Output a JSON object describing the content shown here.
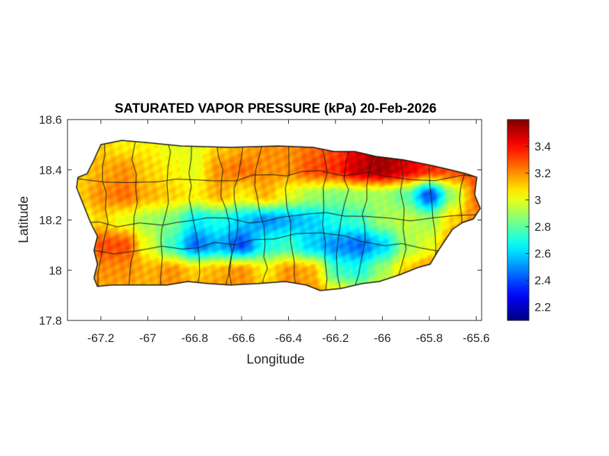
{
  "chart_data": {
    "type": "heatmap",
    "title": "SATURATED VAPOR PRESSURE (kPa) 20-Feb-2026",
    "xlabel": "Longitude",
    "ylabel": "Latitude",
    "xlim": [
      -67.342,
      -65.577
    ],
    "ylim": [
      17.8,
      18.6
    ],
    "xticks": [
      -67.2,
      -67,
      -66.8,
      -66.6,
      -66.4,
      -66.2,
      -66,
      -65.8,
      -65.6
    ],
    "xtick_labels": [
      "-67.2",
      "-67",
      "-66.8",
      "-66.6",
      "-66.4",
      "-66.2",
      "-66",
      "-65.8",
      "-65.6"
    ],
    "yticks": [
      17.8,
      18,
      18.2,
      18.4,
      18.6
    ],
    "ytick_labels": [
      "17.8",
      "18",
      "18.2",
      "18.4",
      "18.6"
    ],
    "colormap": "jet",
    "colorbar": {
      "range": [
        2.1,
        3.6
      ],
      "ticks": [
        2.2,
        2.4,
        2.6,
        2.8,
        3,
        3.2,
        3.4
      ],
      "tick_labels": [
        "2.2",
        "2.4",
        "2.6",
        "2.8",
        "3",
        "3.2",
        "3.4"
      ],
      "location": "right"
    },
    "grid": false,
    "grid_lon": [
      -67.3,
      -67.2,
      -67.1,
      -67.0,
      -66.9,
      -66.8,
      -66.7,
      -66.6,
      -66.5,
      -66.4,
      -66.3,
      -66.2,
      -66.1,
      -66.0,
      -65.9,
      -65.8,
      -65.7,
      -65.6
    ],
    "grid_lat": [
      18.5,
      18.4,
      18.3,
      18.2,
      18.1,
      18.0,
      17.9
    ],
    "values": [
      [
        3.1,
        3.1,
        3.05,
        3.05,
        3.0,
        3.0,
        3.1,
        3.15,
        3.2,
        3.2,
        3.25,
        3.3,
        3.45,
        3.55,
        3.5,
        3.4,
        3.35,
        3.3
      ],
      [
        3.1,
        3.15,
        3.2,
        3.1,
        3.05,
        3.0,
        3.2,
        3.25,
        3.2,
        3.2,
        3.3,
        3.35,
        3.5,
        3.55,
        3.45,
        3.35,
        3.3,
        3.3
      ],
      [
        3.1,
        3.2,
        3.25,
        3.15,
        3.1,
        3.05,
        3.15,
        3.05,
        3.15,
        3.0,
        2.9,
        2.85,
        2.9,
        2.9,
        2.8,
        2.4,
        2.9,
        3.25
      ],
      [
        3.0,
        3.1,
        3.0,
        2.9,
        2.85,
        2.65,
        2.7,
        2.6,
        2.5,
        2.55,
        2.6,
        2.7,
        2.75,
        2.9,
        2.95,
        2.9,
        3.1,
        3.2
      ],
      [
        3.1,
        3.3,
        3.3,
        3.0,
        2.75,
        2.45,
        2.55,
        2.4,
        2.7,
        2.75,
        2.6,
        2.5,
        2.45,
        2.6,
        2.9,
        3.0,
        3.2,
        3.2
      ],
      [
        3.1,
        3.2,
        3.2,
        3.15,
        3.2,
        3.1,
        3.15,
        3.2,
        3.05,
        3.2,
        3.15,
        2.75,
        2.7,
        2.9,
        3.1,
        3.2,
        3.2,
        3.2
      ],
      [
        3.15,
        3.15,
        3.15,
        3.15,
        3.2,
        3.2,
        3.2,
        3.2,
        3.15,
        3.2,
        3.2,
        3.1,
        3.0,
        3.1,
        3.15,
        3.2,
        3.2,
        3.2
      ]
    ]
  }
}
